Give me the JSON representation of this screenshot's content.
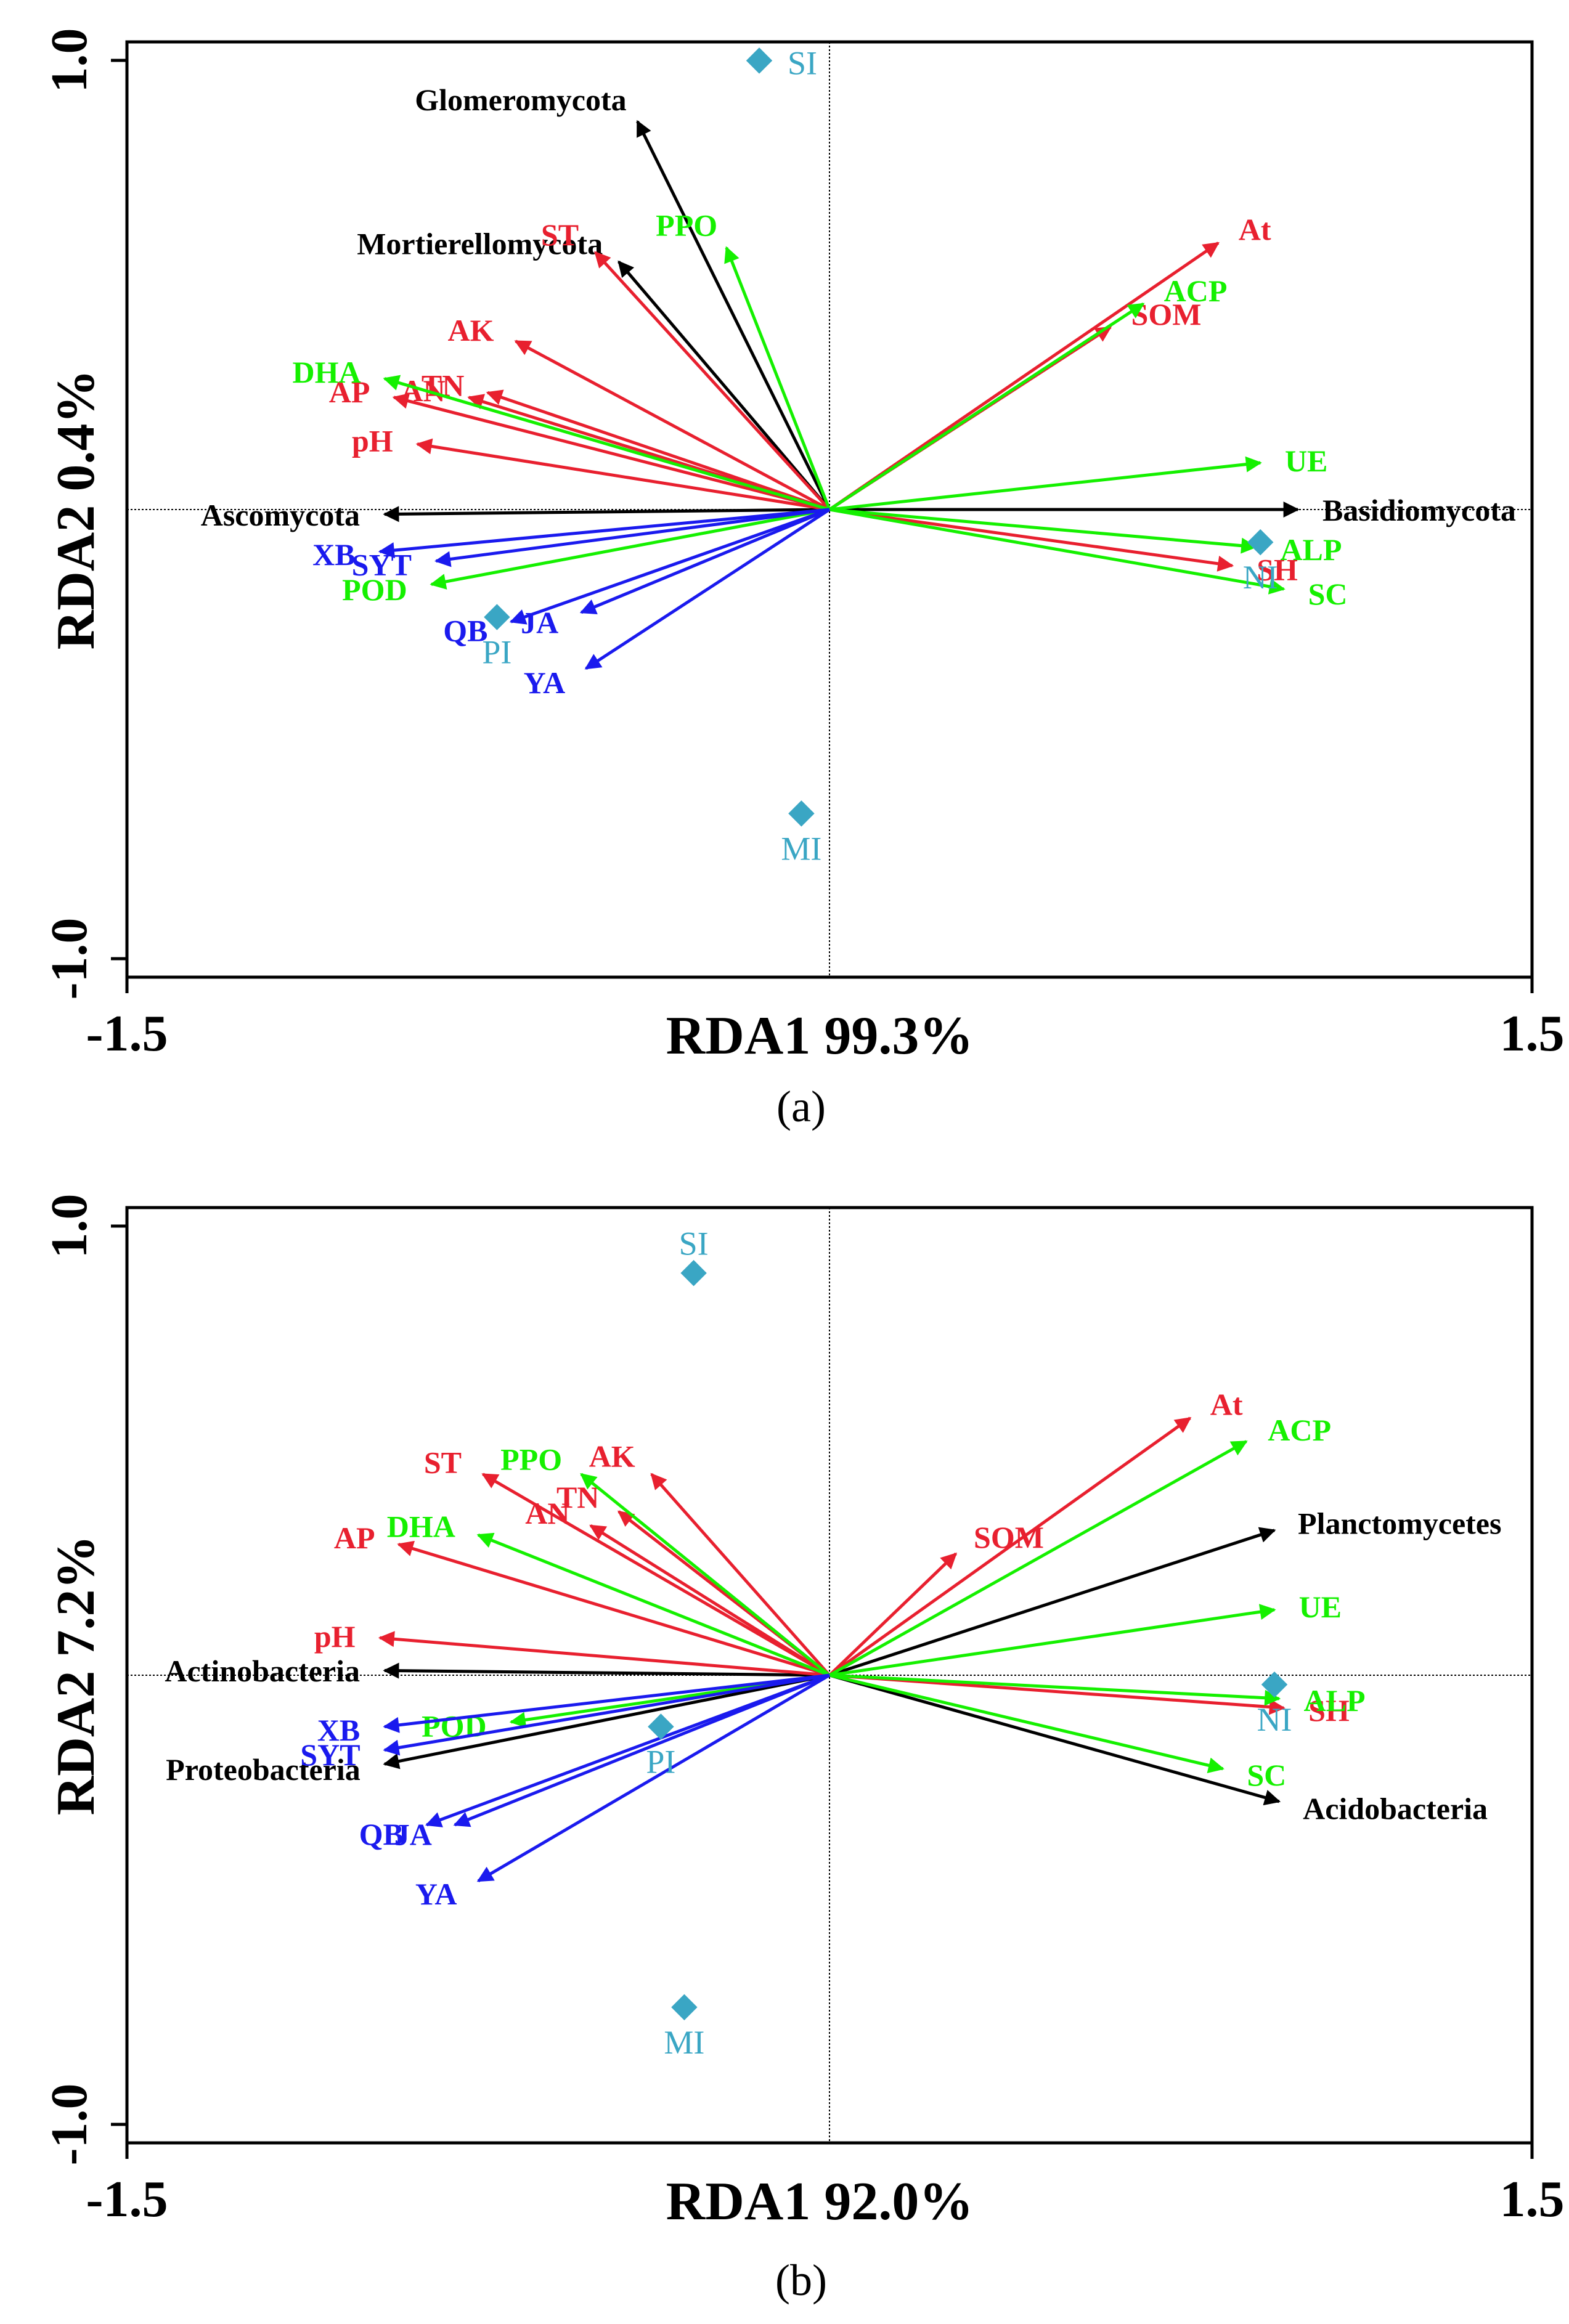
{
  "colors": {
    "environment": "#e8202f",
    "enzyme": "#15f000",
    "species": "#1a1aee",
    "taxon": "#000000",
    "site": "#3aa6c4"
  },
  "chart_data": [
    {
      "type": "biplot",
      "panel_tag": "(a)",
      "xlabel": "RDA1 99.3%",
      "ylabel": "RDA2 0.4%",
      "xlim": [
        -1.5,
        1.5
      ],
      "ylim": [
        -1.0,
        1.0
      ],
      "xticks": [
        {
          "value": -1.5,
          "label": "-1.5"
        },
        {
          "value": 1.5,
          "label": "1.5"
        }
      ],
      "yticks": [
        {
          "value": 1.0,
          "label": "1.0"
        },
        {
          "value": -1.0,
          "label": "-1.0"
        }
      ],
      "vectors": [
        {
          "name": "Glomeromycota",
          "group": "taxon",
          "x": -0.41,
          "y": 0.83
        },
        {
          "name": "Mortierellomycota",
          "group": "taxon",
          "x": -0.45,
          "y": 0.53
        },
        {
          "name": "Ascomycota",
          "group": "taxon",
          "x": -0.95,
          "y": -0.01
        },
        {
          "name": "Basidiomycota",
          "group": "taxon",
          "x": 1.0,
          "y": 0.0
        },
        {
          "name": "At",
          "group": "environment",
          "x": 0.83,
          "y": 0.57
        },
        {
          "name": "SOM",
          "group": "environment",
          "x": 0.6,
          "y": 0.39
        },
        {
          "name": "SH",
          "group": "environment",
          "x": 0.86,
          "y": -0.12
        },
        {
          "name": "ST",
          "group": "environment",
          "x": -0.5,
          "y": 0.55
        },
        {
          "name": "AK",
          "group": "environment",
          "x": -0.67,
          "y": 0.36
        },
        {
          "name": "TN",
          "group": "environment",
          "x": -0.73,
          "y": 0.25
        },
        {
          "name": "AN",
          "group": "environment",
          "x": -0.77,
          "y": 0.24
        },
        {
          "name": "AP",
          "group": "environment",
          "x": -0.93,
          "y": 0.24
        },
        {
          "name": "pH",
          "group": "environment",
          "x": -0.88,
          "y": 0.14
        },
        {
          "name": "PPO",
          "group": "enzyme",
          "x": -0.22,
          "y": 0.56
        },
        {
          "name": "DHA",
          "group": "enzyme",
          "x": -0.95,
          "y": 0.28
        },
        {
          "name": "POD",
          "group": "enzyme",
          "x": -0.85,
          "y": -0.16
        },
        {
          "name": "ACP",
          "group": "enzyme",
          "x": 0.67,
          "y": 0.44
        },
        {
          "name": "UE",
          "group": "enzyme",
          "x": 0.92,
          "y": 0.1
        },
        {
          "name": "ALP",
          "group": "enzyme",
          "x": 0.91,
          "y": -0.08
        },
        {
          "name": "SC",
          "group": "enzyme",
          "x": 0.97,
          "y": -0.17
        },
        {
          "name": "SYT",
          "group": "species",
          "x": -0.84,
          "y": -0.11
        },
        {
          "name": "XB",
          "group": "species",
          "x": -0.96,
          "y": -0.09
        },
        {
          "name": "QB",
          "group": "species",
          "x": -0.68,
          "y": -0.24
        },
        {
          "name": "JA",
          "group": "species",
          "x": -0.53,
          "y": -0.22
        },
        {
          "name": "YA",
          "group": "species",
          "x": -0.52,
          "y": -0.34
        }
      ],
      "sites": [
        {
          "name": "SI",
          "x": -0.15,
          "y": 0.96
        },
        {
          "name": "NI",
          "x": 0.92,
          "y": -0.07
        },
        {
          "name": "PI",
          "x": -0.71,
          "y": -0.23
        },
        {
          "name": "MI",
          "x": -0.06,
          "y": -0.65
        }
      ]
    },
    {
      "type": "biplot",
      "panel_tag": "(b)",
      "xlabel": "RDA1 92.0%",
      "ylabel": "RDA2 7.2%",
      "xlim": [
        -1.5,
        1.5
      ],
      "ylim": [
        -1.0,
        1.0
      ],
      "xticks": [
        {
          "value": -1.5,
          "label": "-1.5"
        },
        {
          "value": 1.5,
          "label": "1.5"
        }
      ],
      "yticks": [
        {
          "value": 1.0,
          "label": "1.0"
        },
        {
          "value": -1.0,
          "label": "-1.0"
        }
      ],
      "vectors": [
        {
          "name": "Planctomycetes",
          "group": "taxon",
          "x": 0.95,
          "y": 0.31
        },
        {
          "name": "Actinobacteria",
          "group": "taxon",
          "x": -0.95,
          "y": 0.01
        },
        {
          "name": "Proteobacteria",
          "group": "taxon",
          "x": -0.95,
          "y": -0.19
        },
        {
          "name": "Acidobacteria",
          "group": "taxon",
          "x": 0.96,
          "y": -0.27
        },
        {
          "name": "At",
          "group": "environment",
          "x": 0.77,
          "y": 0.55
        },
        {
          "name": "SOM",
          "group": "environment",
          "x": 0.27,
          "y": 0.26
        },
        {
          "name": "SH",
          "group": "environment",
          "x": 0.97,
          "y": -0.07
        },
        {
          "name": "ST",
          "group": "environment",
          "x": -0.74,
          "y": 0.43
        },
        {
          "name": "AK",
          "group": "environment",
          "x": -0.38,
          "y": 0.43
        },
        {
          "name": "TN",
          "group": "environment",
          "x": -0.45,
          "y": 0.35
        },
        {
          "name": "AN",
          "group": "environment",
          "x": -0.51,
          "y": 0.32
        },
        {
          "name": "AP",
          "group": "environment",
          "x": -0.92,
          "y": 0.28
        },
        {
          "name": "pH",
          "group": "environment",
          "x": -0.96,
          "y": 0.08
        },
        {
          "name": "PPO",
          "group": "enzyme",
          "x": -0.53,
          "y": 0.43
        },
        {
          "name": "DHA",
          "group": "enzyme",
          "x": -0.75,
          "y": 0.3
        },
        {
          "name": "POD",
          "group": "enzyme",
          "x": -0.68,
          "y": -0.1
        },
        {
          "name": "ACP",
          "group": "enzyme",
          "x": 0.89,
          "y": 0.5
        },
        {
          "name": "UE",
          "group": "enzyme",
          "x": 0.95,
          "y": 0.14
        },
        {
          "name": "ALP",
          "group": "enzyme",
          "x": 0.96,
          "y": -0.05
        },
        {
          "name": "SC",
          "group": "enzyme",
          "x": 0.84,
          "y": -0.2
        },
        {
          "name": "XB",
          "group": "species",
          "x": -0.95,
          "y": -0.11
        },
        {
          "name": "SYT",
          "group": "species",
          "x": -0.95,
          "y": -0.16
        },
        {
          "name": "QB",
          "group": "species",
          "x": -0.86,
          "y": -0.32
        },
        {
          "name": "JA",
          "group": "species",
          "x": -0.8,
          "y": -0.32
        },
        {
          "name": "YA",
          "group": "species",
          "x": -0.75,
          "y": -0.44
        }
      ],
      "sites": [
        {
          "name": "SI",
          "x": -0.29,
          "y": 0.86
        },
        {
          "name": "NI",
          "x": 0.95,
          "y": -0.02
        },
        {
          "name": "PI",
          "x": -0.36,
          "y": -0.11
        },
        {
          "name": "MI",
          "x": -0.31,
          "y": -0.71
        }
      ]
    }
  ]
}
